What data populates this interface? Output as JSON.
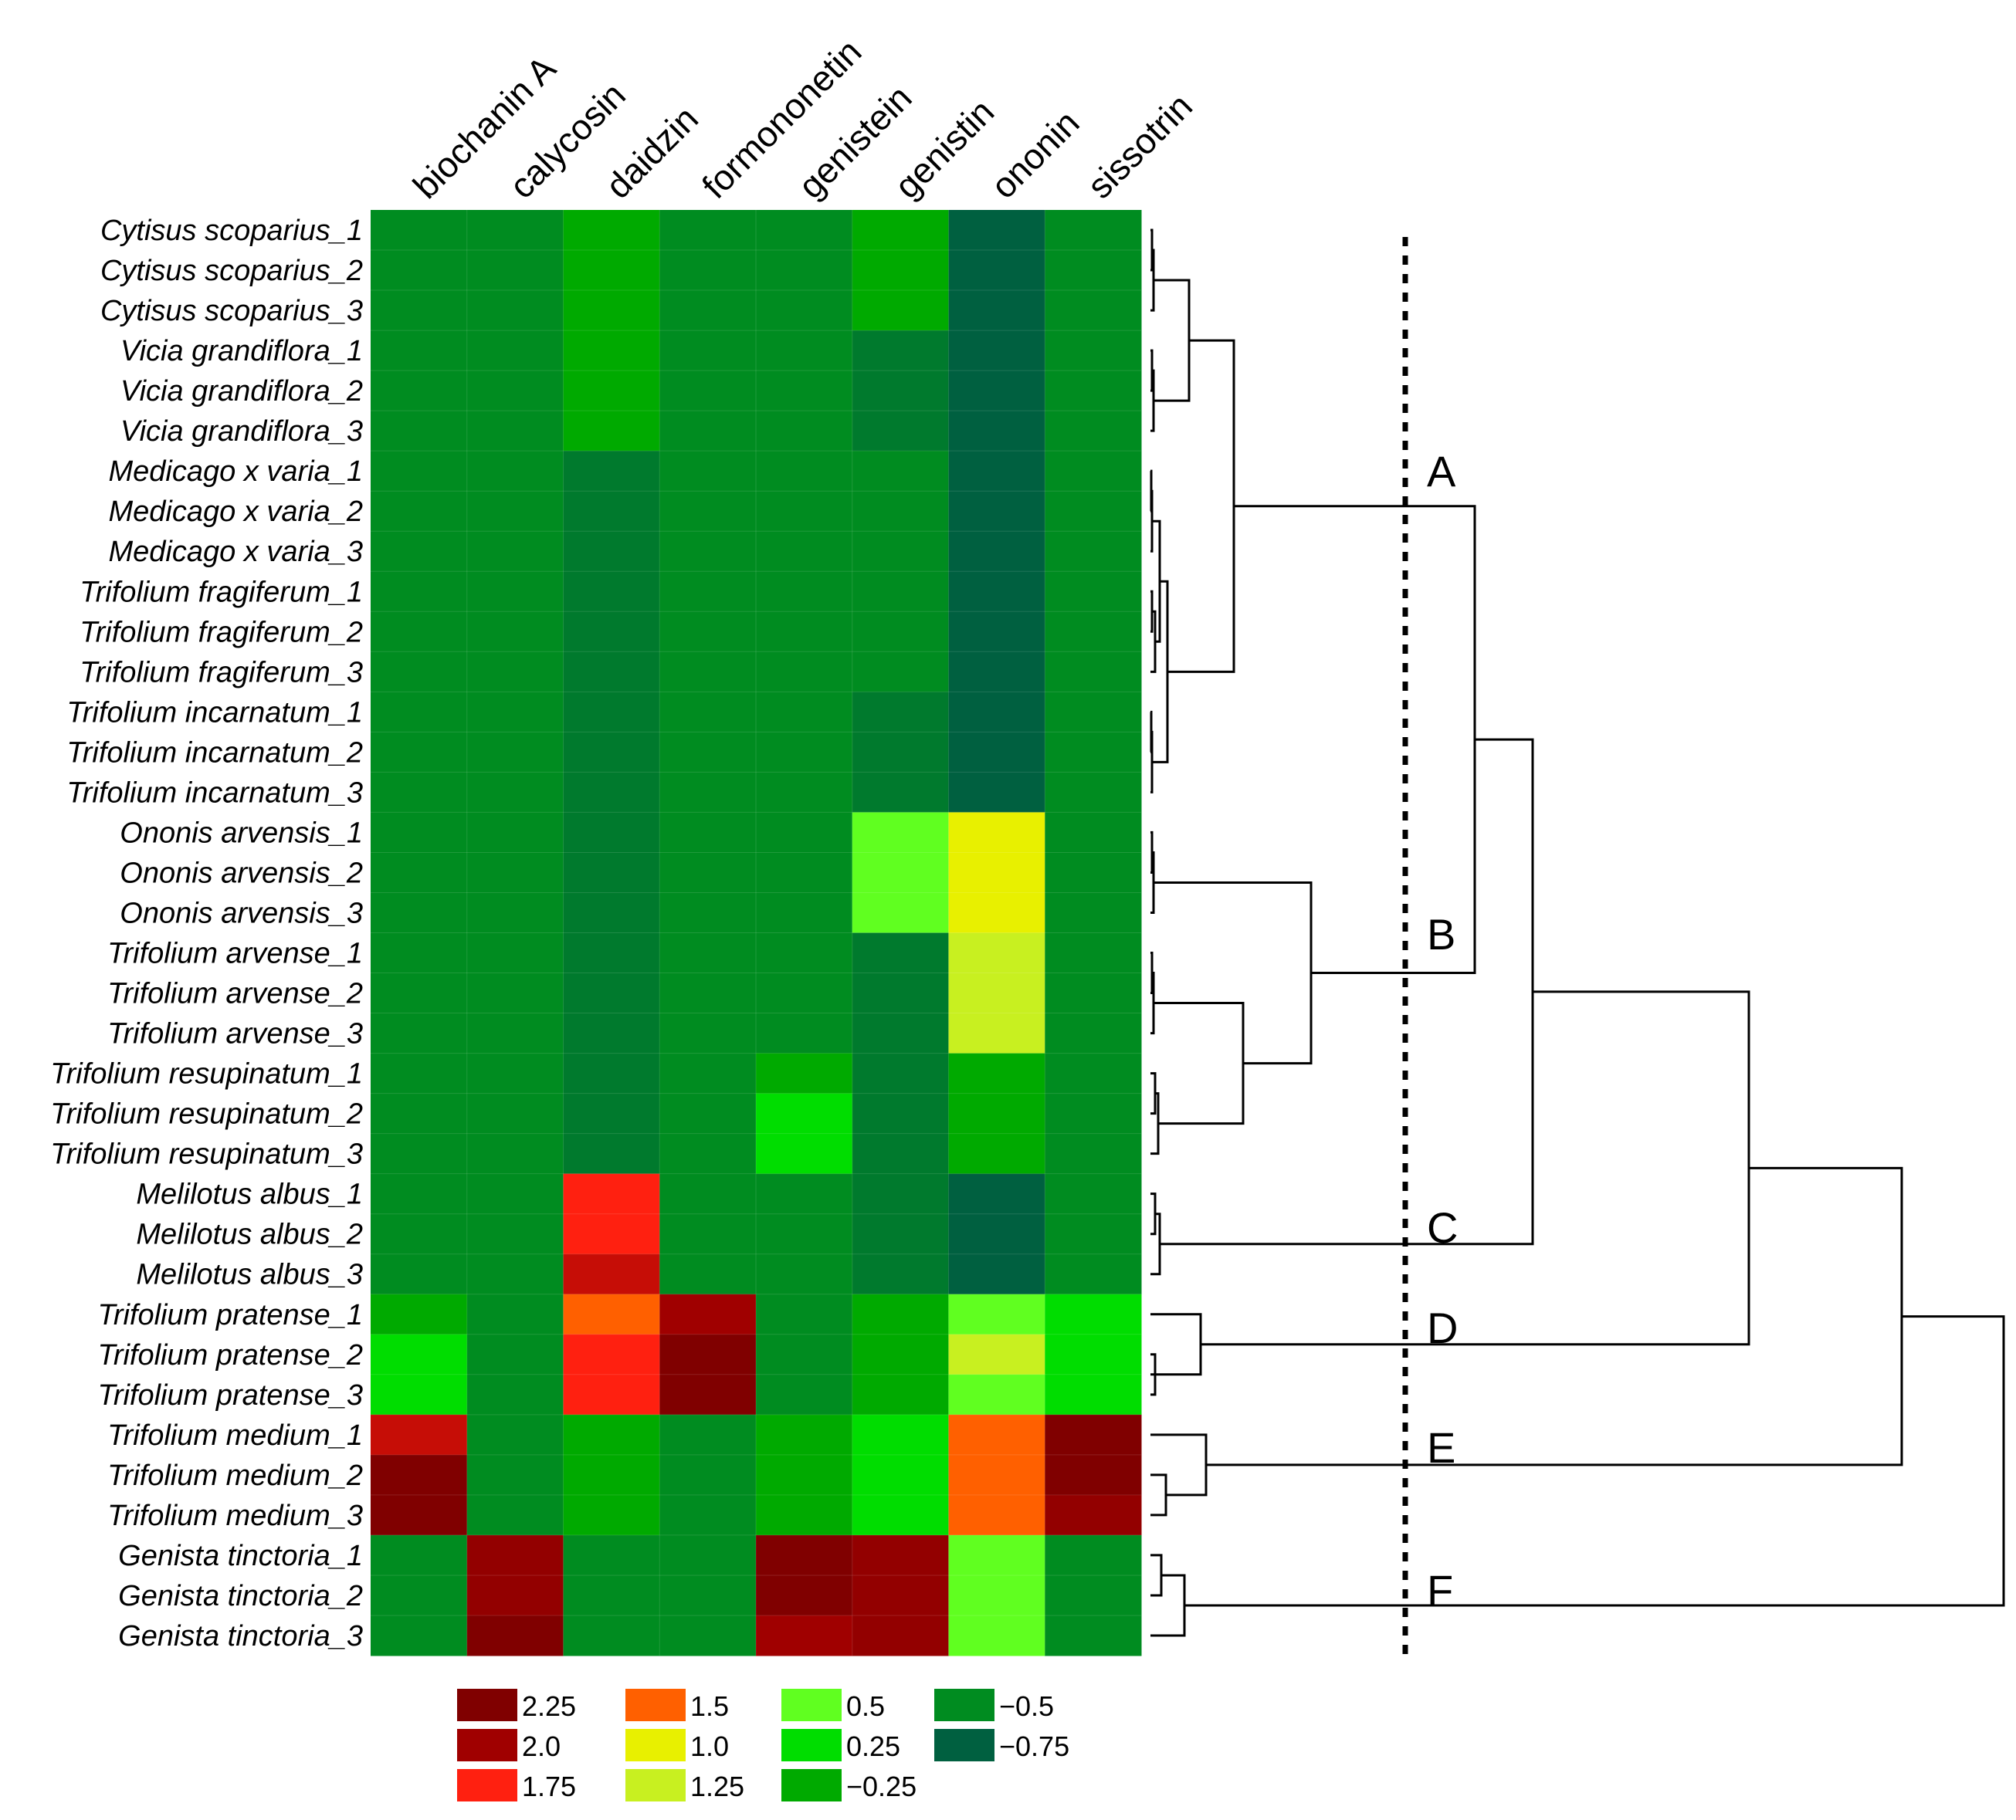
{
  "chart_data": {
    "type": "heatmap",
    "columns": [
      "biochanin A",
      "calycosin",
      "daidzin",
      "formononetin",
      "genistein",
      "genistin",
      "ononin",
      "sissotrin"
    ],
    "rows": [
      "Cytisus scoparius_1",
      "Cytisus scoparius_2",
      "Cytisus scoparius_3",
      "Vicia grandiflora_1",
      "Vicia grandiflora_2",
      "Vicia grandiflora_3",
      "Medicago x varia_1",
      "Medicago x varia_2",
      "Medicago x varia_3",
      "Trifolium fragiferum_1",
      "Trifolium fragiferum_2",
      "Trifolium fragiferum_3",
      "Trifolium incarnatum_1",
      "Trifolium incarnatum_2",
      "Trifolium incarnatum_3",
      "Ononis arvensis_1",
      "Ononis arvensis_2",
      "Ononis arvensis_3",
      "Trifolium arvense_1",
      "Trifolium arvense_2",
      "Trifolium arvense_3",
      "Trifolium resupinatum_1",
      "Trifolium resupinatum_2",
      "Trifolium resupinatum_3",
      "Melilotus albus_1",
      "Melilotus albus_2",
      "Melilotus albus_3",
      "Trifolium pratense_1",
      "Trifolium pratense_2",
      "Trifolium pratense_3",
      "Trifolium medium_1",
      "Trifolium medium_2",
      "Trifolium medium_3",
      "Genista tinctoria_1",
      "Genista tinctoria_2",
      "Genista tinctoria_3"
    ],
    "values": [
      [
        -0.5,
        -0.5,
        -0.25,
        -0.5,
        -0.5,
        -0.25,
        -0.75,
        -0.5
      ],
      [
        -0.5,
        -0.5,
        -0.25,
        -0.5,
        -0.5,
        -0.25,
        -0.75,
        -0.5
      ],
      [
        -0.5,
        -0.5,
        -0.25,
        -0.5,
        -0.5,
        -0.25,
        -0.75,
        -0.5
      ],
      [
        -0.5,
        -0.5,
        -0.25,
        -0.5,
        -0.5,
        -0.6,
        -0.75,
        -0.5
      ],
      [
        -0.5,
        -0.5,
        -0.25,
        -0.5,
        -0.5,
        -0.6,
        -0.75,
        -0.5
      ],
      [
        -0.5,
        -0.5,
        -0.25,
        -0.5,
        -0.5,
        -0.6,
        -0.75,
        -0.5
      ],
      [
        -0.5,
        -0.5,
        -0.6,
        -0.5,
        -0.5,
        -0.5,
        -0.75,
        -0.5
      ],
      [
        -0.5,
        -0.5,
        -0.6,
        -0.5,
        -0.5,
        -0.5,
        -0.75,
        -0.5
      ],
      [
        -0.5,
        -0.5,
        -0.6,
        -0.5,
        -0.5,
        -0.5,
        -0.75,
        -0.5
      ],
      [
        -0.5,
        -0.5,
        -0.6,
        -0.5,
        -0.5,
        -0.5,
        -0.75,
        -0.5
      ],
      [
        -0.5,
        -0.5,
        -0.6,
        -0.5,
        -0.5,
        -0.5,
        -0.75,
        -0.5
      ],
      [
        -0.5,
        -0.5,
        -0.6,
        -0.5,
        -0.5,
        -0.5,
        -0.75,
        -0.5
      ],
      [
        -0.5,
        -0.5,
        -0.6,
        -0.5,
        -0.5,
        -0.6,
        -0.75,
        -0.5
      ],
      [
        -0.5,
        -0.5,
        -0.6,
        -0.5,
        -0.5,
        -0.6,
        -0.75,
        -0.5
      ],
      [
        -0.5,
        -0.5,
        -0.6,
        -0.5,
        -0.5,
        -0.6,
        -0.75,
        -0.5
      ],
      [
        -0.5,
        -0.5,
        -0.6,
        -0.5,
        -0.5,
        0.5,
        1.0,
        -0.5
      ],
      [
        -0.5,
        -0.5,
        -0.6,
        -0.5,
        -0.5,
        0.5,
        1.0,
        -0.5
      ],
      [
        -0.5,
        -0.5,
        -0.6,
        -0.5,
        -0.5,
        0.5,
        1.0,
        -0.5
      ],
      [
        -0.5,
        -0.5,
        -0.6,
        -0.5,
        -0.5,
        -0.6,
        1.25,
        -0.5
      ],
      [
        -0.5,
        -0.5,
        -0.6,
        -0.5,
        -0.5,
        -0.6,
        1.25,
        -0.5
      ],
      [
        -0.5,
        -0.5,
        -0.6,
        -0.5,
        -0.5,
        -0.6,
        1.25,
        -0.5
      ],
      [
        -0.5,
        -0.5,
        -0.6,
        -0.5,
        -0.25,
        -0.6,
        -0.25,
        -0.5
      ],
      [
        -0.5,
        -0.5,
        -0.6,
        -0.5,
        0.25,
        -0.6,
        -0.25,
        -0.5
      ],
      [
        -0.5,
        -0.5,
        -0.6,
        -0.5,
        0.25,
        -0.6,
        -0.25,
        -0.5
      ],
      [
        -0.5,
        -0.5,
        1.75,
        -0.5,
        -0.5,
        -0.6,
        -0.75,
        -0.5
      ],
      [
        -0.5,
        -0.5,
        1.75,
        -0.5,
        -0.5,
        -0.6,
        -0.75,
        -0.5
      ],
      [
        -0.5,
        -0.5,
        1.9,
        -0.5,
        -0.5,
        -0.6,
        -0.75,
        -0.5
      ],
      [
        -0.25,
        -0.5,
        1.5,
        2.0,
        -0.5,
        -0.25,
        0.5,
        0.25
      ],
      [
        0.25,
        -0.5,
        1.75,
        2.25,
        -0.5,
        -0.25,
        1.25,
        0.25
      ],
      [
        0.25,
        -0.5,
        1.75,
        2.25,
        -0.5,
        -0.25,
        0.5,
        0.25
      ],
      [
        1.9,
        -0.5,
        -0.25,
        -0.5,
        -0.25,
        0.25,
        1.5,
        2.25
      ],
      [
        2.25,
        -0.5,
        -0.25,
        -0.5,
        -0.25,
        0.25,
        1.5,
        2.25
      ],
      [
        2.25,
        -0.5,
        -0.25,
        -0.5,
        -0.25,
        0.25,
        1.5,
        2.1
      ],
      [
        -0.5,
        2.1,
        -0.5,
        -0.5,
        2.25,
        2.1,
        0.5,
        -0.5
      ],
      [
        -0.5,
        2.1,
        -0.5,
        -0.5,
        2.25,
        2.1,
        0.5,
        -0.5
      ],
      [
        -0.5,
        2.25,
        -0.5,
        -0.5,
        2.0,
        2.1,
        0.5,
        -0.5
      ]
    ],
    "clusters": [
      "A",
      "B",
      "C",
      "D",
      "E",
      "F"
    ],
    "legend": [
      {
        "label": "2.25",
        "value": 2.25,
        "color": "#800000"
      },
      {
        "label": "2.0",
        "value": 2.0,
        "color": "#a00000"
      },
      {
        "label": "1.75",
        "value": 1.75,
        "color": "#ff2010"
      },
      {
        "label": "1.5",
        "value": 1.5,
        "color": "#ff6000"
      },
      {
        "label": "1.0",
        "value": 1.0,
        "color": "#e8f000"
      },
      {
        "label": "1.25",
        "value": 1.25,
        "color": "#c8f020"
      },
      {
        "label": "0.5",
        "value": 0.5,
        "color": "#60ff20"
      },
      {
        "label": "0.25",
        "value": 0.25,
        "color": "#00dd00"
      },
      {
        "label": "−0.25",
        "value": -0.25,
        "color": "#00aa00"
      },
      {
        "label": "−0.5",
        "value": -0.5,
        "color": "#008c20"
      },
      {
        "label": "−0.75",
        "value": -0.75,
        "color": "#006040"
      }
    ]
  }
}
